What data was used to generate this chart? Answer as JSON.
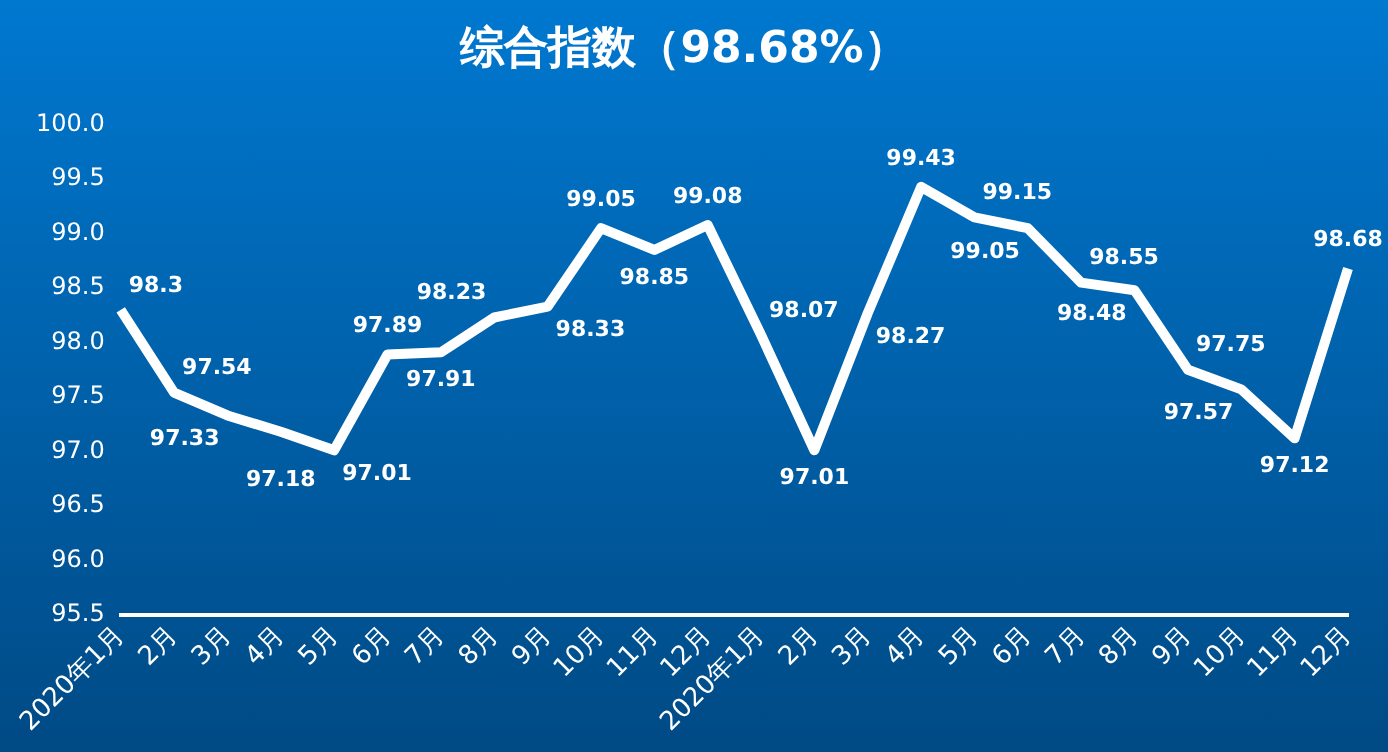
{
  "chart_data": {
    "type": "line",
    "title": "综合指数（98.68%）",
    "categories": [
      "2020年1月",
      "2月",
      "3月",
      "4月",
      "5月",
      "6月",
      "7月",
      "8月",
      "9月",
      "10月",
      "11月",
      "12月",
      "2020年1月",
      "2月",
      "3月",
      "4月",
      "5月",
      "6月",
      "7月",
      "8月",
      "9月",
      "10月",
      "11月",
      "12月"
    ],
    "series": [
      {
        "color": "#ffffff",
        "values": [
          98.3,
          97.54,
          97.33,
          97.18,
          97.01,
          97.89,
          97.91,
          98.23,
          98.33,
          99.05,
          98.85,
          99.08,
          98.07,
          97.01,
          98.27,
          99.43,
          99.15,
          99.05,
          98.55,
          98.48,
          97.75,
          97.57,
          97.12,
          98.68
        ]
      }
    ],
    "ylim": [
      95.5,
      100
    ],
    "yticks": [
      {
        "value": 95.5,
        "label": "95.5"
      },
      {
        "value": 96,
        "label": "96.0"
      },
      {
        "value": 96.5,
        "label": "96.5"
      },
      {
        "value": 97,
        "label": "97.0"
      },
      {
        "value": 97.5,
        "label": "97.5"
      },
      {
        "value": 98,
        "label": "98.0"
      },
      {
        "value": 98.5,
        "label": "98.5"
      },
      {
        "value": 99,
        "label": "99.0"
      },
      {
        "value": 99.5,
        "label": "99.5"
      },
      {
        "value": 100,
        "label": "100.0"
      }
    ],
    "grid": false,
    "legend": false,
    "marker": "none",
    "line_style": "solid",
    "data_labels": true
  }
}
